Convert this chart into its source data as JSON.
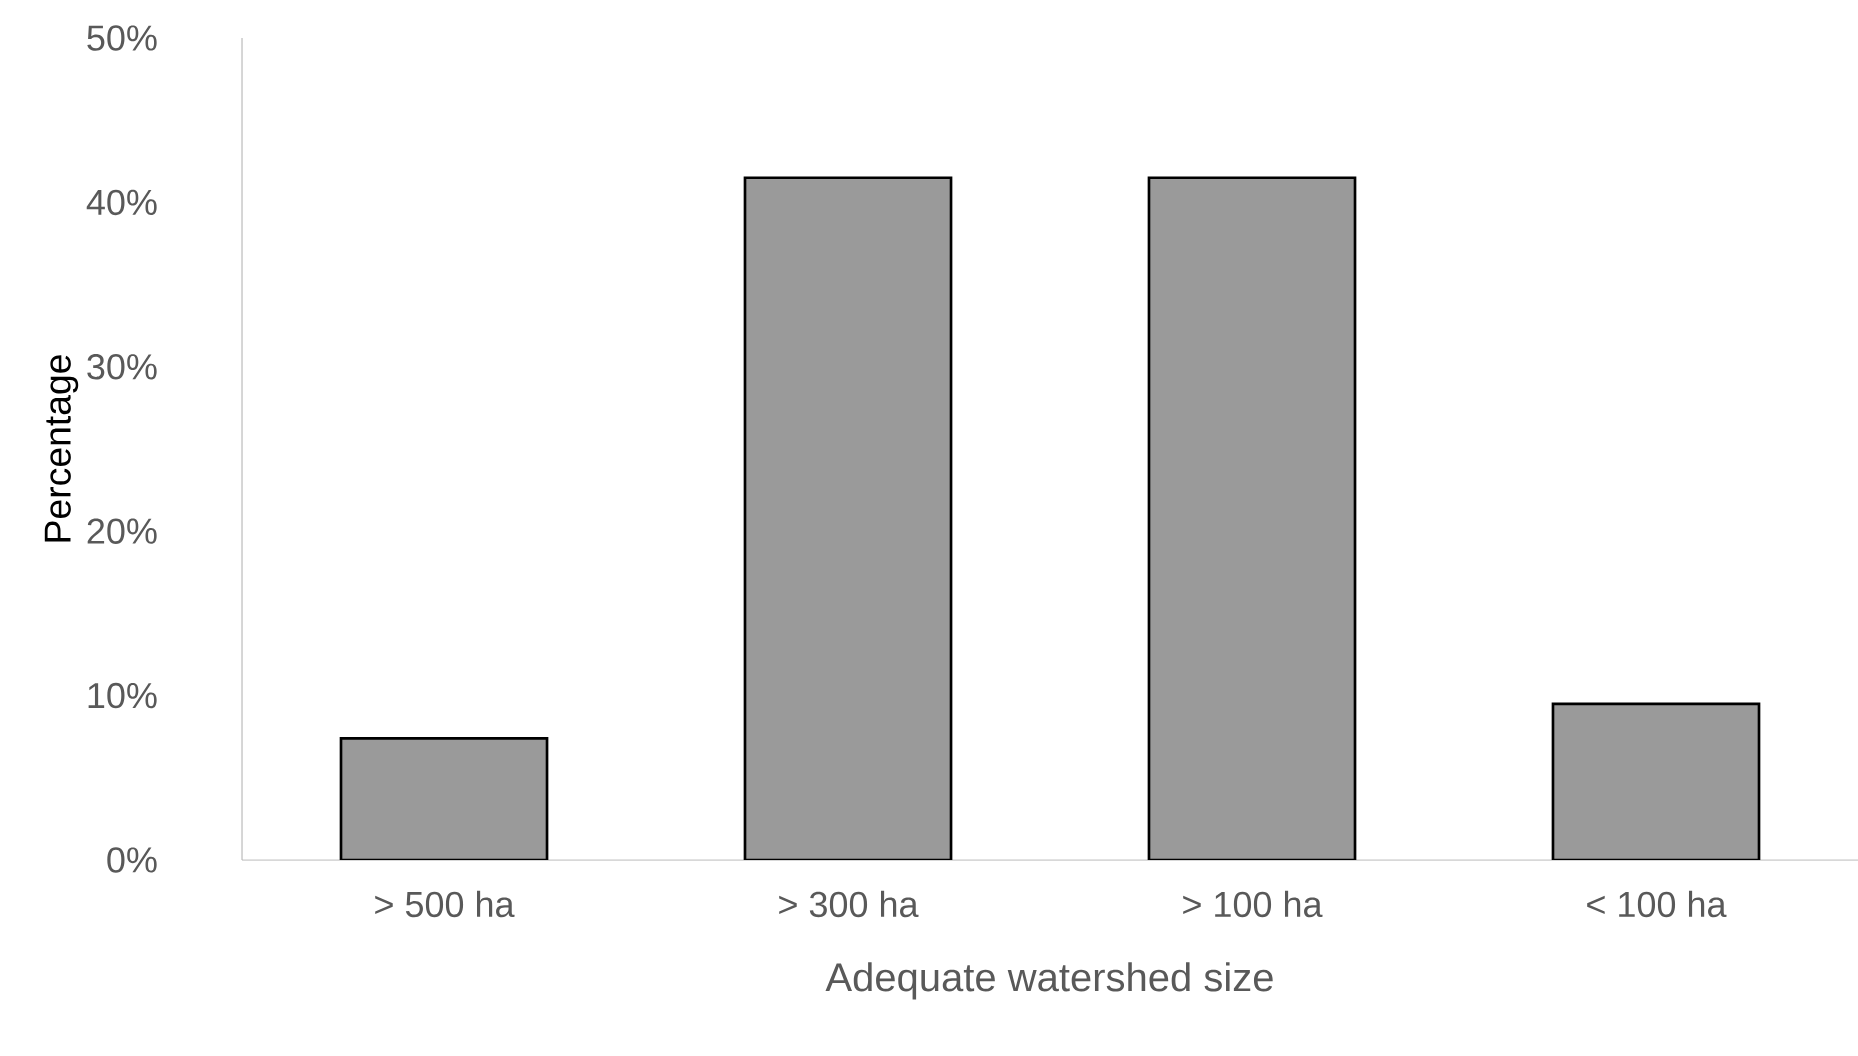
{
  "chart_data": {
    "type": "bar",
    "xlabel": "Adequate watershed size",
    "ylabel": "Percentage",
    "categories": [
      "> 500 ha",
      "> 300 ha",
      "> 100 ha",
      "< 100 ha"
    ],
    "values": [
      7.4,
      41.5,
      41.5,
      9.5
    ],
    "color": "#9a9a9a",
    "ylim": [
      0,
      50
    ],
    "yticks": [
      {
        "value": 0,
        "label": "0%"
      },
      {
        "value": 10,
        "label": "10%"
      },
      {
        "value": 20,
        "label": "20%"
      },
      {
        "value": 30,
        "label": "30%"
      },
      {
        "value": 40,
        "label": "40%"
      },
      {
        "value": 50,
        "label": "50%"
      }
    ],
    "grid": false
  }
}
